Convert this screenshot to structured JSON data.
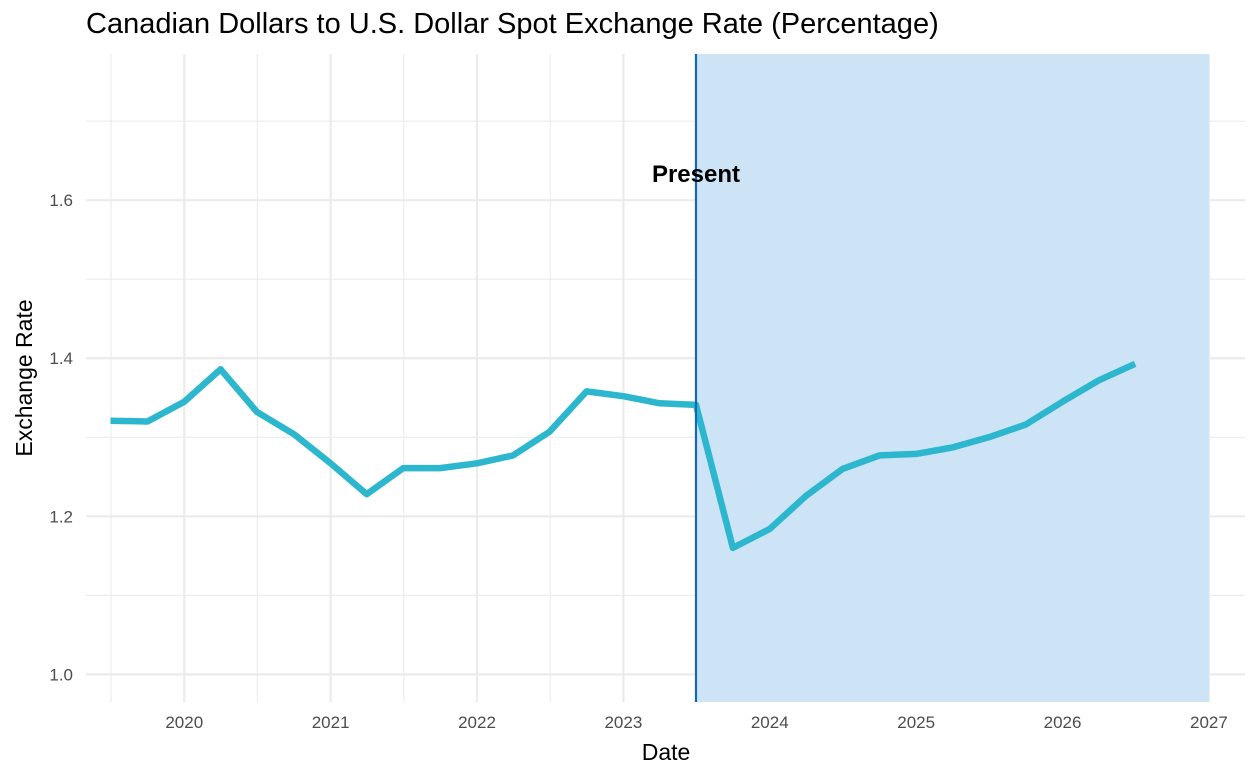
{
  "chart_data": {
    "type": "line",
    "title": "Canadian Dollars to U.S. Dollar Spot Exchange Rate (Percentage)",
    "xlabel": "Date",
    "ylabel": "Exchange Rate",
    "xlim": [
      "2019-05-01",
      "2027-04-01"
    ],
    "ylim": [
      0.965,
      1.785
    ],
    "x_ticks": [
      "2020",
      "2021",
      "2022",
      "2023",
      "2024",
      "2025",
      "2026",
      "2027"
    ],
    "y_ticks": [
      "1.0",
      "1.2",
      "1.4",
      "1.6"
    ],
    "grid": true,
    "legend": "none",
    "series": [
      {
        "x": [
          "2019-07-01",
          "2019-10-01",
          "2020-01-01",
          "2020-04-01",
          "2020-07-01",
          "2020-10-01",
          "2021-01-01",
          "2021-04-01",
          "2021-07-01",
          "2021-10-01",
          "2022-01-01",
          "2022-04-01",
          "2022-07-01",
          "2022-10-01",
          "2023-01-01",
          "2023-04-01",
          "2023-07-01",
          "2023-10-01",
          "2024-01-01",
          "2024-04-01",
          "2024-07-01",
          "2024-10-01",
          "2025-01-01",
          "2025-04-01",
          "2025-07-01",
          "2025-10-01",
          "2026-01-01",
          "2026-04-01",
          "2026-07-01"
        ],
        "values": [
          1.321,
          1.32,
          1.345,
          1.386,
          1.332,
          1.304,
          1.267,
          1.228,
          1.261,
          1.261,
          1.267,
          1.277,
          1.307,
          1.358,
          1.352,
          1.343,
          1.341,
          1.16,
          1.184,
          1.226,
          1.26,
          1.277,
          1.279,
          1.287,
          1.3,
          1.316,
          1.345,
          1.372,
          1.393
        ],
        "color": "#2DB7CE"
      }
    ],
    "annotations": {
      "present_date": "2023-07-01",
      "present_label": "Present",
      "forecast_shade_end": "2027-01-01",
      "shade_color": "#CDE4F7",
      "line_color": "#1667B2"
    }
  }
}
